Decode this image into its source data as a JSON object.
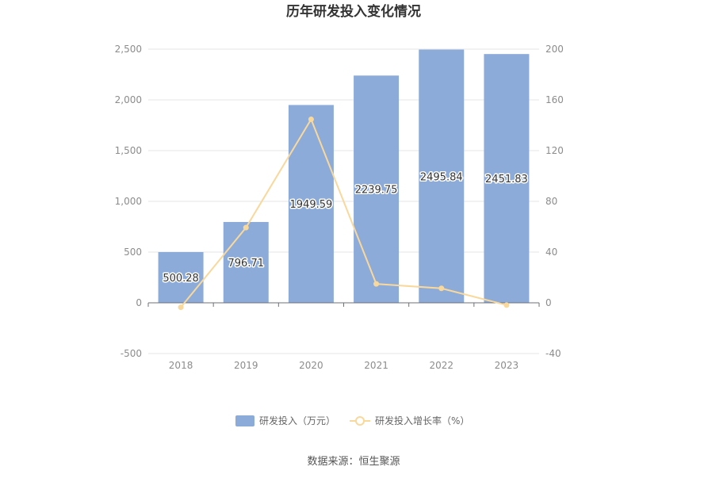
{
  "chart_data": {
    "type": "bar",
    "title": "历年研发投入变化情况",
    "categories": [
      "2018",
      "2019",
      "2020",
      "2021",
      "2022",
      "2023"
    ],
    "series": [
      {
        "name": "研发投入（万元）",
        "type": "bar",
        "axis": "left",
        "color": "#8dabd9",
        "values": [
          500.28,
          796.71,
          1949.59,
          2239.75,
          2495.84,
          2451.83
        ],
        "labels": [
          "500.28",
          "796.71",
          "1949.59",
          "2239.75",
          "2495.84",
          "2451.83"
        ]
      },
      {
        "name": "研发投入增长率（%）",
        "type": "line",
        "axis": "right",
        "color": "#f9d89c",
        "values": [
          -3.5,
          59.3,
          144.7,
          14.9,
          11.4,
          -1.8
        ]
      }
    ],
    "y_left": {
      "min": -500,
      "max": 2500,
      "step": 500,
      "ticks": [
        "-500",
        "0",
        "500",
        "1,000",
        "1,500",
        "2,000",
        "2,500"
      ]
    },
    "y_right": {
      "min": -40,
      "max": 200,
      "step": 40,
      "ticks": [
        "-40",
        "0",
        "40",
        "80",
        "120",
        "160",
        "200"
      ]
    },
    "grid": true,
    "legend_position": "bottom"
  },
  "source_text": "数据来源：恒生聚源",
  "colors": {
    "grid": "#e6e6e6",
    "axis": "#6e7079",
    "bar": "#8dabd9",
    "line": "#f9d89c"
  }
}
